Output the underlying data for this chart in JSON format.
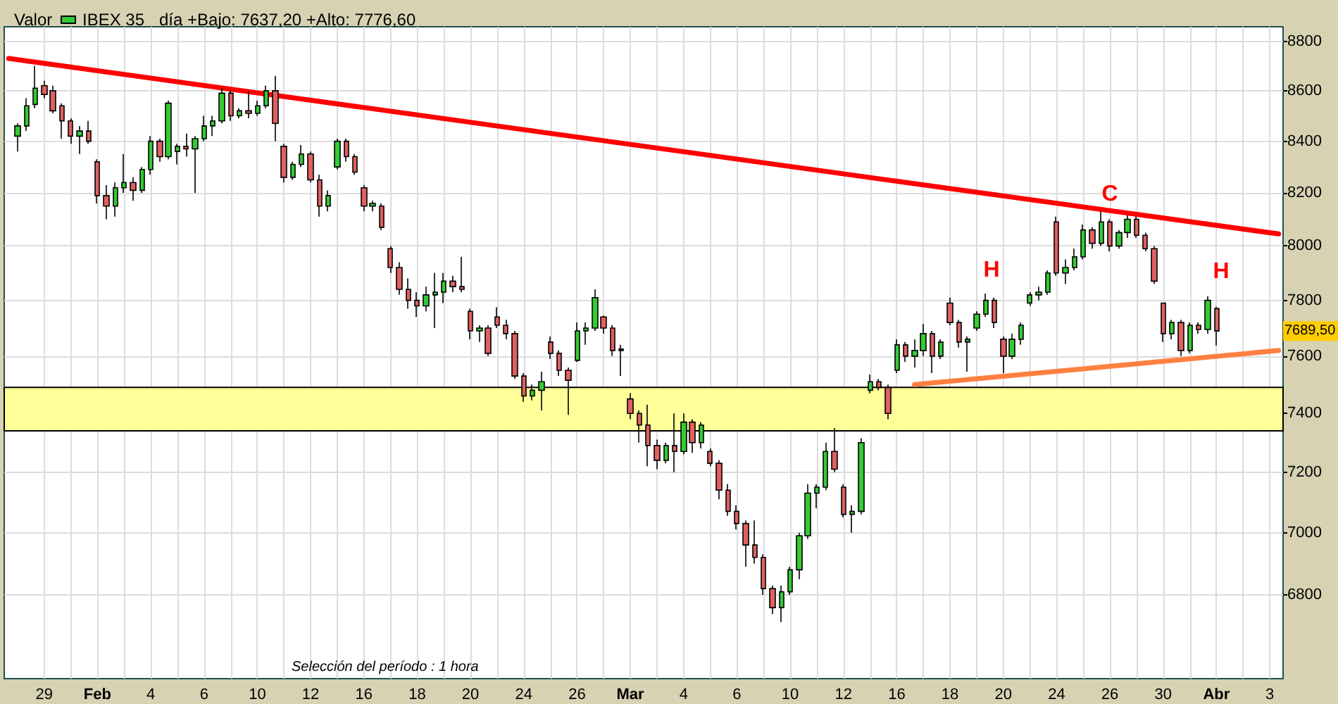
{
  "chart_data": {
    "type": "candlestick",
    "title": "Valor",
    "subtitle": "día +Bajo: 7637,20 +Alto: 7776,60",
    "categories": [
      null,
      null,
      null,
      null,
      "29",
      null,
      null,
      null,
      null,
      null,
      "Feb",
      null,
      null,
      null,
      null,
      null,
      "4",
      null,
      null,
      null,
      null,
      null,
      "6",
      null,
      null,
      null,
      null,
      null,
      "10",
      null,
      null,
      null,
      null,
      null,
      "12",
      null,
      null,
      null,
      null,
      null,
      "16",
      null,
      null,
      null,
      null,
      null,
      "18",
      null,
      null,
      null,
      null,
      null,
      "20",
      null,
      null,
      null,
      null,
      null,
      "24",
      null,
      null,
      null,
      null,
      null,
      "26",
      null,
      null,
      null,
      null,
      null,
      "Mar",
      null,
      null,
      null,
      null,
      null,
      "4",
      null,
      null,
      null,
      null,
      null,
      "6",
      null,
      null,
      null,
      null,
      null,
      "10",
      null,
      null,
      null,
      null,
      null,
      "12",
      null,
      null,
      null,
      null,
      null,
      "16",
      null,
      null,
      null,
      null,
      null,
      "18",
      null,
      null,
      null,
      null,
      null,
      "20",
      null,
      null,
      null,
      null,
      null,
      "24",
      null,
      null,
      null,
      null,
      null,
      "26",
      null,
      null,
      null,
      null,
      null,
      "30",
      null,
      null,
      null,
      null,
      null,
      "Abr",
      null,
      null,
      null,
      null,
      null,
      "3",
      null
    ],
    "ylim": [
      6540,
      8860
    ],
    "yticks": [
      6800,
      7000,
      7200,
      7400,
      7600,
      7800,
      8000,
      8200,
      8400,
      8600,
      8800
    ],
    "log": true,
    "grid": true,
    "legend": "top left",
    "series": [
      {
        "name": "IBEX 35",
        "color": "#000000",
        "ohlc": [
          null,
          [
            8420,
            8470,
            8360,
            8460
          ],
          [
            8460,
            8570,
            8440,
            8540
          ],
          [
            8545,
            8700,
            8530,
            8610
          ],
          [
            8620,
            8640,
            8570,
            8585
          ],
          [
            8600,
            8620,
            8510,
            8520
          ],
          [
            8540,
            8550,
            8410,
            8480
          ],
          [
            8480,
            8490,
            8390,
            8420
          ],
          [
            8420,
            8460,
            8350,
            8440
          ],
          [
            8440,
            8480,
            8390,
            8400
          ],
          [
            8320,
            8330,
            8160,
            8190
          ],
          [
            8190,
            8230,
            8100,
            8150
          ],
          [
            8150,
            8240,
            8110,
            8220
          ],
          [
            8220,
            8350,
            8200,
            8240
          ],
          [
            8240,
            8260,
            8170,
            8210
          ],
          [
            8210,
            8300,
            8200,
            8290
          ],
          [
            8290,
            8420,
            8270,
            8400
          ],
          [
            8400,
            8410,
            8320,
            8340
          ],
          [
            8340,
            8560,
            8330,
            8550
          ],
          [
            8360,
            8390,
            8310,
            8380
          ],
          [
            8380,
            8430,
            8340,
            8370
          ],
          [
            8370,
            8420,
            8200,
            8410
          ],
          [
            8410,
            8500,
            8400,
            8460
          ],
          [
            8460,
            8500,
            8420,
            8480
          ],
          [
            8480,
            8610,
            8470,
            8590
          ],
          [
            8590,
            8600,
            8480,
            8500
          ],
          [
            8500,
            8530,
            8490,
            8520
          ],
          [
            8520,
            8600,
            8490,
            8510
          ],
          [
            8510,
            8560,
            8500,
            8540
          ],
          [
            8540,
            8620,
            8530,
            8600
          ],
          [
            8600,
            8660,
            8400,
            8470
          ],
          [
            8380,
            8390,
            8240,
            8260
          ],
          [
            8260,
            8320,
            8250,
            8310
          ],
          [
            8310,
            8385,
            8300,
            8350
          ],
          [
            8350,
            8360,
            8240,
            8250
          ],
          [
            8250,
            8270,
            8110,
            8150
          ],
          [
            8150,
            8210,
            8130,
            8190
          ],
          [
            8300,
            8410,
            8290,
            8400
          ],
          [
            8400,
            8410,
            8320,
            8340
          ],
          [
            8340,
            8350,
            8270,
            8280
          ],
          [
            8220,
            8230,
            8130,
            8150
          ],
          [
            8150,
            8170,
            8130,
            8160
          ],
          [
            8150,
            8160,
            8060,
            8070
          ],
          [
            7990,
            8000,
            7900,
            7920
          ],
          [
            7920,
            7940,
            7820,
            7840
          ],
          [
            7840,
            7880,
            7770,
            7800
          ],
          [
            7800,
            7830,
            7740,
            7780
          ],
          [
            7780,
            7850,
            7760,
            7820
          ],
          [
            7820,
            7900,
            7700,
            7830
          ],
          [
            7830,
            7900,
            7790,
            7870
          ],
          [
            7870,
            7890,
            7830,
            7850
          ],
          [
            7850,
            7960,
            7830,
            7840
          ],
          [
            7760,
            7770,
            7660,
            7690
          ],
          [
            7690,
            7710,
            7650,
            7700
          ],
          [
            7700,
            7710,
            7600,
            7610
          ],
          [
            7740,
            7775,
            7700,
            7710
          ],
          [
            7710,
            7730,
            7660,
            7680
          ],
          [
            7680,
            7690,
            7520,
            7530
          ],
          [
            7530,
            7540,
            7440,
            7460
          ],
          [
            7460,
            7500,
            7445,
            7480
          ],
          [
            7480,
            7545,
            7410,
            7510
          ],
          [
            7650,
            7670,
            7590,
            7610
          ],
          [
            7610,
            7620,
            7530,
            7550
          ],
          [
            7550,
            7560,
            7395,
            7515
          ],
          [
            7585,
            7720,
            7580,
            7690
          ],
          [
            7690,
            7720,
            7640,
            7700
          ],
          [
            7700,
            7840,
            7690,
            7810
          ],
          [
            7740,
            7745,
            7680,
            7700
          ],
          [
            7700,
            7710,
            7600,
            7620
          ],
          [
            7620,
            7640,
            7530,
            7625
          ],
          [
            7450,
            7470,
            7380,
            7400
          ],
          [
            7400,
            7410,
            7300,
            7360
          ],
          [
            7360,
            7430,
            7220,
            7290
          ],
          [
            7290,
            7310,
            7210,
            7240
          ],
          [
            7240,
            7300,
            7230,
            7290
          ],
          [
            7290,
            7400,
            7200,
            7270
          ],
          [
            7270,
            7400,
            7260,
            7370
          ],
          [
            7370,
            7380,
            7265,
            7300
          ],
          [
            7300,
            7370,
            7280,
            7360
          ],
          [
            7270,
            7280,
            7220,
            7230
          ],
          [
            7230,
            7240,
            7110,
            7140
          ],
          [
            7140,
            7160,
            7055,
            7070
          ],
          [
            7070,
            7090,
            7010,
            7030
          ],
          [
            7030,
            7040,
            6890,
            6960
          ],
          [
            6960,
            7040,
            6900,
            6920
          ],
          [
            6920,
            6930,
            6800,
            6820
          ],
          [
            6820,
            6830,
            6740,
            6760
          ],
          [
            6760,
            6830,
            6715,
            6810
          ],
          [
            6810,
            6890,
            6800,
            6880
          ],
          [
            6880,
            7000,
            6850,
            6990
          ],
          [
            6990,
            7160,
            6980,
            7130
          ],
          [
            7130,
            7160,
            7080,
            7150
          ],
          [
            7150,
            7300,
            7140,
            7270
          ],
          [
            7270,
            7350,
            7200,
            7210
          ],
          [
            7150,
            7160,
            7050,
            7060
          ],
          [
            7060,
            7090,
            7000,
            7070
          ],
          [
            7070,
            7315,
            7060,
            7300
          ],
          [
            7480,
            7535,
            7470,
            7510
          ],
          [
            7510,
            7520,
            7480,
            7490
          ],
          [
            7490,
            7500,
            7380,
            7400
          ],
          [
            7550,
            7660,
            7540,
            7640
          ],
          [
            7640,
            7650,
            7580,
            7600
          ],
          [
            7600,
            7660,
            7560,
            7620
          ],
          [
            7620,
            7715,
            7600,
            7680
          ],
          [
            7680,
            7690,
            7540,
            7600
          ],
          [
            7600,
            7660,
            7590,
            7650
          ],
          [
            7790,
            7810,
            7710,
            7720
          ],
          [
            7720,
            7730,
            7630,
            7650
          ],
          [
            7650,
            7670,
            7545,
            7660
          ],
          [
            7700,
            7760,
            7690,
            7750
          ],
          [
            7750,
            7825,
            7740,
            7800
          ],
          [
            7800,
            7810,
            7700,
            7720
          ],
          [
            7660,
            7670,
            7540,
            7600
          ],
          [
            7600,
            7680,
            7590,
            7660
          ],
          [
            7660,
            7720,
            7640,
            7710
          ],
          [
            7790,
            7830,
            7780,
            7820
          ],
          [
            7820,
            7850,
            7800,
            7830
          ],
          [
            7830,
            7910,
            7820,
            7900
          ],
          [
            8090,
            8110,
            7890,
            7900
          ],
          [
            7900,
            7950,
            7860,
            7920
          ],
          [
            7920,
            7990,
            7910,
            7960
          ],
          [
            7960,
            8080,
            7950,
            8060
          ],
          [
            8060,
            8070,
            7990,
            8010
          ],
          [
            8010,
            8130,
            8000,
            8090
          ],
          [
            8090,
            8100,
            7980,
            8000
          ],
          [
            8000,
            8060,
            7990,
            8050
          ],
          [
            8050,
            8115,
            8030,
            8100
          ],
          [
            8100,
            8110,
            8030,
            8040
          ],
          [
            8040,
            8050,
            7980,
            7990
          ],
          [
            7990,
            8000,
            7860,
            7870
          ],
          [
            7790,
            7790,
            7650,
            7680
          ],
          [
            7680,
            7730,
            7660,
            7720
          ],
          [
            7720,
            7730,
            7600,
            7620
          ],
          [
            7620,
            7720,
            7610,
            7710
          ],
          [
            7710,
            7720,
            7680,
            7695
          ],
          [
            7695,
            7815,
            7680,
            7800
          ],
          [
            7770,
            7776.6,
            7637.2,
            7689.5
          ],
          null,
          null,
          null,
          null,
          null,
          null,
          null
        ],
        "colors": [
          null,
          "#33cc33",
          "#33cc33",
          "#33cc33",
          "#e06060",
          "#e06060",
          "#e06060",
          "#e06060",
          "#33cc33",
          "#e06060",
          "#e06060",
          "#e06060",
          "#33cc33",
          "#33cc33",
          "#e06060",
          "#33cc33",
          "#33cc33",
          "#e06060",
          "#33cc33",
          "#33cc33",
          "#e06060",
          "#33cc33",
          "#33cc33",
          "#33cc33",
          "#33cc33",
          "#e06060",
          "#33cc33",
          "#e06060",
          "#33cc33",
          "#33cc33",
          "#e06060",
          "#e06060",
          "#33cc33",
          "#33cc33",
          "#e06060",
          "#e06060",
          "#33cc33",
          "#33cc33",
          "#e06060",
          "#e06060",
          "#e06060",
          "#33cc33",
          "#e06060",
          "#e06060",
          "#e06060",
          "#e06060",
          "#e06060",
          "#33cc33",
          "#33cc33",
          "#33cc33",
          "#e06060",
          "#e06060",
          "#e06060",
          "#33cc33",
          "#e06060",
          "#e06060",
          "#e06060",
          "#e06060",
          "#e06060",
          "#33cc33",
          "#33cc33",
          "#e06060",
          "#e06060",
          "#e06060",
          "#33cc33",
          "#33cc33",
          "#33cc33",
          "#e06060",
          "#e06060",
          "#33cc33",
          "#e06060",
          "#e06060",
          "#e06060",
          "#e06060",
          "#33cc33",
          "#e06060",
          "#33cc33",
          "#e06060",
          "#33cc33",
          "#e06060",
          "#e06060",
          "#e06060",
          "#e06060",
          "#e06060",
          "#e06060",
          "#e06060",
          "#e06060",
          "#33cc33",
          "#33cc33",
          "#33cc33",
          "#33cc33",
          "#33cc33",
          "#33cc33",
          "#e06060",
          "#e06060",
          "#33cc33",
          "#33cc33",
          "#33cc33",
          "#e06060",
          "#e06060",
          "#33cc33",
          "#e06060",
          "#33cc33",
          "#33cc33",
          "#e06060",
          "#33cc33",
          "#e06060",
          "#e06060",
          "#33cc33",
          "#33cc33",
          "#33cc33",
          "#e06060",
          "#e06060",
          "#33cc33",
          "#33cc33",
          "#33cc33",
          "#33cc33",
          "#33cc33",
          "#e06060",
          "#33cc33",
          "#33cc33",
          "#33cc33",
          "#e06060",
          "#33cc33",
          "#e06060",
          "#33cc33",
          "#33cc33",
          "#e06060",
          "#e06060",
          "#e06060",
          "#e06060",
          "#33cc33",
          "#e06060",
          "#33cc33",
          "#e06060",
          "#33cc33",
          "#e06060",
          null,
          null,
          null,
          null,
          null,
          null,
          null
        ]
      },
      {
        "type": "line",
        "color": "#ff0000",
        "values": [
          8730,
          null,
          null,
          null,
          null,
          null,
          null,
          null,
          null,
          null,
          null,
          null,
          null,
          null,
          null,
          null,
          null,
          null,
          null,
          null,
          null,
          null,
          null,
          null,
          null,
          null,
          null,
          null,
          null,
          null,
          null,
          null,
          null,
          null,
          null,
          null,
          null,
          null,
          null,
          null,
          null,
          null,
          null,
          null,
          null,
          null,
          null,
          null,
          null,
          null,
          null,
          null,
          null,
          null,
          null,
          null,
          null,
          null,
          null,
          null,
          null,
          null,
          null,
          null,
          null,
          null,
          null,
          null,
          null,
          null,
          null,
          null,
          null,
          null,
          null,
          null,
          null,
          null,
          null,
          null,
          null,
          null,
          null,
          null,
          null,
          null,
          null,
          null,
          null,
          null,
          null,
          null,
          null,
          null,
          null,
          null,
          null,
          null,
          null,
          null,
          null,
          null,
          null,
          null,
          null,
          null,
          null,
          null,
          null,
          null,
          null,
          null,
          null,
          null,
          null,
          null,
          null,
          null,
          null,
          null,
          null,
          null,
          null,
          null,
          null,
          null,
          null,
          null,
          null,
          null,
          null,
          null,
          null,
          null,
          null,
          null,
          null,
          null,
          null,
          null,
          null,
          null,
          null,
          8045
        ]
      },
      {
        "type": "line",
        "color": "#ff8040",
        "values": [
          null,
          null,
          null,
          null,
          null,
          null,
          null,
          null,
          null,
          null,
          null,
          null,
          null,
          null,
          null,
          null,
          null,
          null,
          null,
          null,
          null,
          null,
          null,
          null,
          null,
          null,
          null,
          null,
          null,
          null,
          null,
          null,
          null,
          null,
          null,
          null,
          null,
          null,
          null,
          null,
          null,
          null,
          null,
          null,
          null,
          null,
          null,
          null,
          null,
          null,
          null,
          null,
          null,
          null,
          null,
          null,
          null,
          null,
          null,
          null,
          null,
          null,
          null,
          null,
          null,
          null,
          null,
          null,
          null,
          null,
          null,
          null,
          null,
          null,
          null,
          null,
          null,
          null,
          null,
          null,
          null,
          null,
          null,
          null,
          null,
          null,
          null,
          null,
          null,
          null,
          null,
          null,
          null,
          null,
          null,
          null,
          null,
          null,
          null,
          null,
          null,
          null,
          7500,
          null,
          null,
          null,
          null,
          null,
          null,
          null,
          null,
          null,
          null,
          null,
          null,
          null,
          null,
          null,
          null,
          null,
          null,
          null,
          null,
          null,
          null,
          null,
          null,
          null,
          null,
          null,
          null,
          null,
          null,
          null,
          null,
          null,
          null,
          null,
          null,
          null,
          null,
          null,
          null,
          7620
        ]
      }
    ],
    "bands": [
      {
        "axis": "y",
        "from": 7340,
        "to": 7490,
        "color": "#ffff99"
      }
    ],
    "annotations": [
      "H",
      "C",
      "H",
      {
        "text": "7689,50",
        "y": 7689.5
      },
      "Selección del período : 1 hora"
    ]
  }
}
